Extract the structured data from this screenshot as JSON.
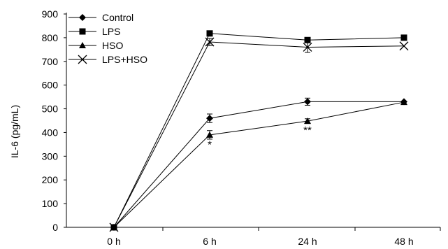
{
  "chart_data": {
    "type": "line",
    "title": "",
    "xlabel": "",
    "ylabel": "IL-6 (pg/mL)",
    "categories": [
      "0 h",
      "6 h",
      "24 h",
      "48 h"
    ],
    "ylim": [
      0,
      900
    ],
    "yticks": [
      0,
      100,
      200,
      300,
      400,
      500,
      600,
      700,
      800,
      900
    ],
    "grid": false,
    "legend_position": "top-left",
    "series": [
      {
        "name": "Control",
        "marker": "diamond",
        "values": [
          0,
          460,
          530,
          530
        ],
        "errors": [
          0,
          18,
          15,
          0
        ]
      },
      {
        "name": "LPS",
        "marker": "square",
        "values": [
          0,
          818,
          790,
          800
        ],
        "errors": [
          0,
          0,
          0,
          0
        ]
      },
      {
        "name": "HSO",
        "marker": "triangle",
        "values": [
          0,
          390,
          448,
          528
        ],
        "errors": [
          0,
          18,
          10,
          0
        ]
      },
      {
        "name": "LPS+HSO",
        "marker": "x",
        "values": [
          0,
          782,
          760,
          765
        ],
        "errors": [
          0,
          15,
          22,
          0
        ]
      }
    ],
    "annotations": [
      {
        "text": "*",
        "category": "6 h",
        "y": 335
      },
      {
        "text": "**",
        "category": "24 h",
        "y": 395
      }
    ],
    "color": "#000000"
  }
}
